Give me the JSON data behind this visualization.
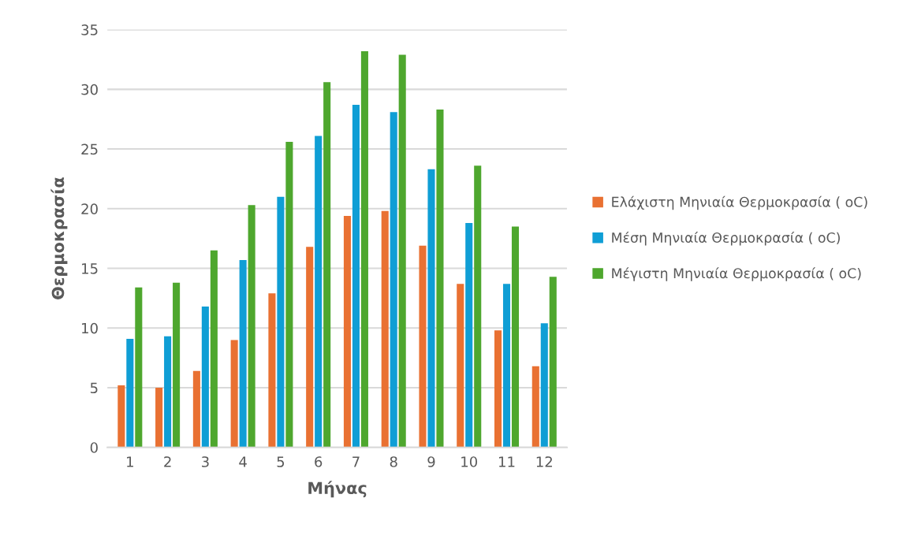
{
  "chart_data": {
    "type": "bar",
    "xlabel": "Μήνας",
    "ylabel": "Θερμοκρασία",
    "categories": [
      "1",
      "2",
      "3",
      "4",
      "5",
      "6",
      "7",
      "8",
      "9",
      "10",
      "11",
      "12"
    ],
    "series": [
      {
        "name": "Ελάχιστη Μηνιαία Θερμοκρασία ( oC)",
        "color": "#e97132",
        "values": [
          5.2,
          5.0,
          6.4,
          9.0,
          12.9,
          16.8,
          19.4,
          19.8,
          16.9,
          13.7,
          9.8,
          6.8
        ]
      },
      {
        "name": "Μέση Μηνιαία Θερμοκρασία ( oC)",
        "color": "#0f9ed5",
        "values": [
          9.1,
          9.3,
          11.8,
          15.7,
          21.0,
          26.1,
          28.7,
          28.1,
          23.3,
          18.8,
          13.7,
          10.4
        ]
      },
      {
        "name": "Μέγιστη Μηνιαία Θερμοκρασία ( oC)",
        "color": "#4ea72e",
        "values": [
          13.4,
          13.8,
          16.5,
          20.3,
          25.6,
          30.6,
          33.2,
          32.9,
          28.3,
          23.6,
          18.5,
          14.3
        ]
      }
    ],
    "ylim": [
      0,
      35
    ],
    "yticks": [
      0,
      5,
      10,
      15,
      20,
      25,
      30,
      35
    ],
    "grid": "y",
    "legend": "right"
  }
}
